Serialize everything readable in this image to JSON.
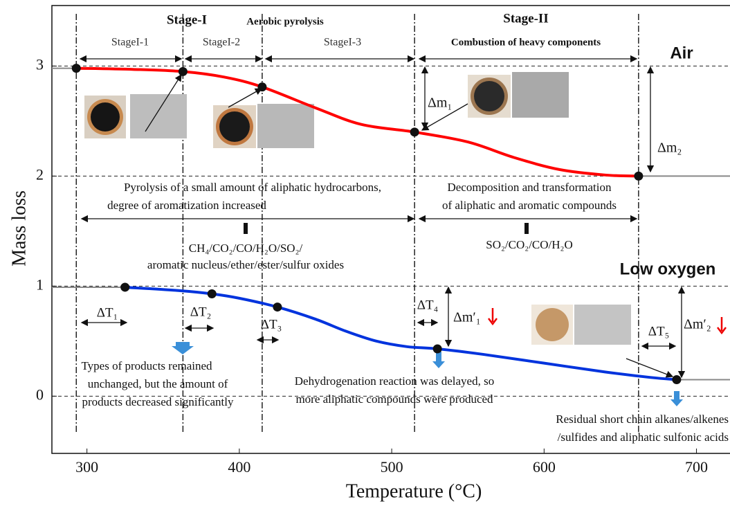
{
  "chart_data": {
    "type": "line",
    "x_label": "Temperature (°C)",
    "y_label": "Mass loss",
    "xlim": [
      277,
      722
    ],
    "ylim": [
      -0.52,
      3.55
    ],
    "xticks": [
      300,
      400,
      500,
      600,
      700
    ],
    "yticks": [
      0,
      1,
      2,
      3
    ],
    "grid": true,
    "stage_boundaries": [
      293,
      363,
      415,
      515,
      662
    ],
    "series": [
      {
        "name": "Air",
        "color": "#ff0000",
        "x": [
          293,
          330,
          363,
          390,
          415,
          450,
          480,
          515,
          550,
          580,
          610,
          640,
          662
        ],
        "values": [
          2.98,
          2.97,
          2.95,
          2.9,
          2.81,
          2.62,
          2.47,
          2.4,
          2.31,
          2.17,
          2.06,
          2.01,
          2.0
        ],
        "marker_x": [
          293,
          363,
          415,
          515,
          662
        ],
        "marker_values": [
          2.98,
          2.95,
          2.81,
          2.4,
          2.0
        ]
      },
      {
        "name": "Low oxygen",
        "color": "#0033dd",
        "x": [
          325,
          360,
          382,
          400,
          425,
          450,
          470,
          490,
          510,
          530,
          560,
          600,
          640,
          670,
          687
        ],
        "values": [
          0.99,
          0.96,
          0.93,
          0.89,
          0.81,
          0.7,
          0.59,
          0.5,
          0.45,
          0.43,
          0.38,
          0.3,
          0.22,
          0.17,
          0.15
        ],
        "marker_x": [
          325,
          382,
          425,
          530,
          687
        ],
        "marker_values": [
          0.99,
          0.93,
          0.81,
          0.43,
          0.15
        ]
      }
    ],
    "annotations": [
      "Stage-I",
      "Aerobic pyrolysis",
      "StageI-1",
      "StageI-2",
      "StageI-3",
      "Stage-II",
      "Combustion of  heavy components",
      "Δm₁",
      "Δm₂",
      "Pyrolysis of a small amount of aliphatic hydrocarbons,",
      "degree of aromatization increased",
      "Decomposition and transformation",
      "of aliphatic and aromatic compounds",
      "CH₄/CO₂/CO/H₂O/SO₂/",
      "aromatic nucleus/ether/ester/sulfur oxides",
      "SO₂/CO₂/CO/H₂O",
      "ΔT₁",
      "ΔT₂",
      "ΔT₃",
      "ΔT₄",
      "ΔT₅",
      "Δm′₁",
      "Δm′₂",
      "Types of products remained",
      "unchanged,  but the amount of",
      "products decreased significantly",
      "Dehydrogenation reaction was delayed, so",
      "more aliphatic compounds were produced",
      "Residual short chain alkanes/alkenes",
      "/sulfides and aliphatic sulfonic acids"
    ]
  }
}
